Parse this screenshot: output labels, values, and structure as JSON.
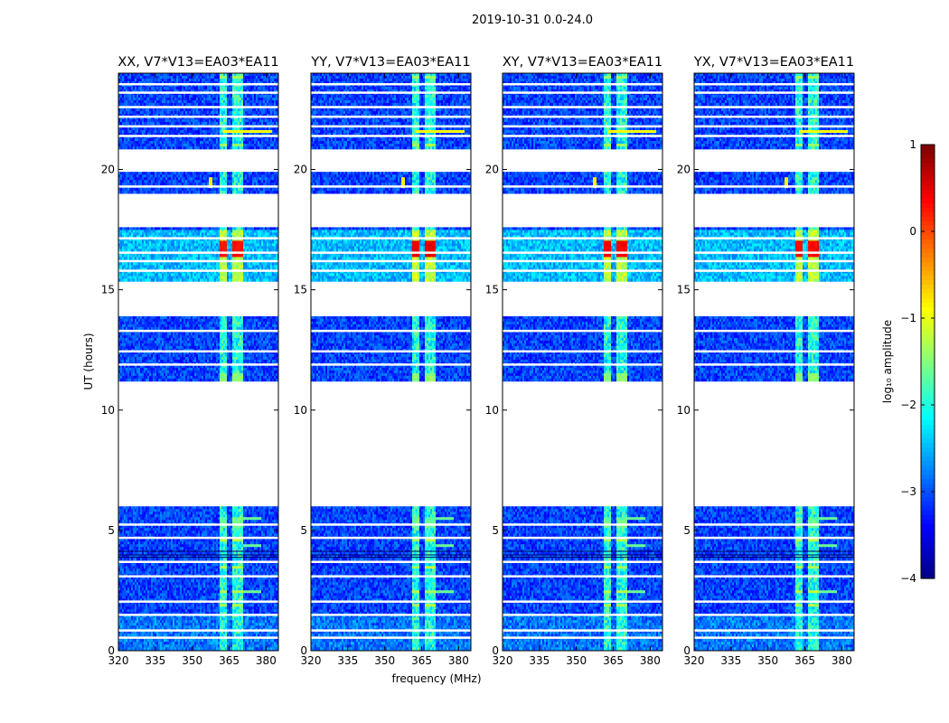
{
  "chart_data": {
    "type": "heatmap",
    "suptitle": "2019-10-31 0.0-24.0",
    "xlabel": "frequency (MHz)",
    "ylabel": "UT (hours)",
    "xlim": [
      320,
      385
    ],
    "ylim": [
      0,
      24
    ],
    "xticks": [
      "320",
      "335",
      "350",
      "365",
      "380"
    ],
    "yticks": [
      "0",
      "5",
      "10",
      "15",
      "20"
    ],
    "panels": [
      {
        "title": "XX, V7*V13=EA03*EA11",
        "strength": 0.85
      },
      {
        "title": "YY, V7*V13=EA03*EA11",
        "strength": 1.0
      },
      {
        "title": "XY, V7*V13=EA03*EA11",
        "strength": 0.95
      },
      {
        "title": "YX, V7*V13=EA03*EA11",
        "strength": 0.9
      }
    ],
    "colorbar": {
      "label": "log₁₀ amplitude",
      "range": [
        -4,
        1
      ],
      "ticks": [
        "1",
        "0",
        "−1",
        "−2",
        "−3",
        "−4"
      ],
      "colormap": "jet"
    },
    "data_coverage_ut": [
      [
        0.0,
        6.0
      ],
      [
        11.3,
        13.9
      ],
      [
        15.4,
        17.6
      ],
      [
        19.0,
        19.9
      ],
      [
        20.9,
        24.0
      ]
    ],
    "rfi_band_mhz": [
      361,
      370
    ],
    "rfi_spike": {
      "freq_mhz": 357,
      "ut_hour": 19.5
    },
    "strongest_emission": {
      "freq_range_mhz": [
        361,
        370
      ],
      "ut_range": [
        16.5,
        17.0
      ],
      "log10_amplitude": 0.5
    }
  }
}
